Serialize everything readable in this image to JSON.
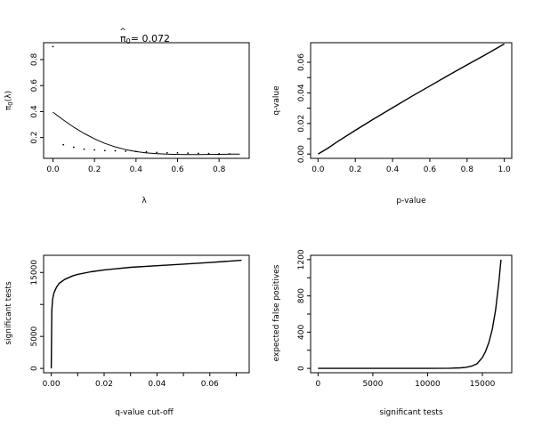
{
  "chart_data": [
    {
      "type": "scatter",
      "title": "π̂0= 0.072",
      "title_main": "π",
      "title_hat": "^",
      "title_sub": "0",
      "title_rest": "= 0.072",
      "xlabel": "λ",
      "ylabel": "π0(λ)",
      "ylabel_main": "π",
      "ylabel_sub": "0",
      "ylabel_rest": "(λ)",
      "xlim": [
        -0.045,
        0.945
      ],
      "ylim": [
        0.04,
        0.93
      ],
      "xticks": [
        0,
        0.2,
        0.4,
        0.6,
        0.8
      ],
      "xtick_labels": [
        "0.0",
        "0.2",
        "0.4",
        "0.6",
        "0.8"
      ],
      "yticks": [
        0.2,
        0.4,
        0.6,
        0.8
      ],
      "ytick_labels": [
        "0.2",
        "0.4",
        "0.6",
        "0.8"
      ],
      "points": {
        "x": [
          0,
          0.05,
          0.1,
          0.15,
          0.2,
          0.25,
          0.3,
          0.35,
          0.4,
          0.45,
          0.5,
          0.55,
          0.6,
          0.65,
          0.7,
          0.75,
          0.8,
          0.85
        ],
        "y": [
          0.9,
          0.145,
          0.125,
          0.11,
          0.105,
          0.1,
          0.098,
          0.095,
          0.093,
          0.09,
          0.085,
          0.083,
          0.082,
          0.08,
          0.078,
          0.077,
          0.075,
          0.074
        ]
      },
      "curve": {
        "x": [
          0,
          0.05,
          0.1,
          0.15,
          0.2,
          0.25,
          0.3,
          0.35,
          0.4,
          0.45,
          0.5,
          0.55,
          0.6,
          0.65,
          0.7,
          0.75,
          0.8,
          0.85,
          0.9
        ],
        "y": [
          0.395,
          0.335,
          0.28,
          0.232,
          0.19,
          0.155,
          0.128,
          0.107,
          0.092,
          0.082,
          0.076,
          0.072,
          0.07,
          0.069,
          0.069,
          0.07,
          0.071,
          0.072,
          0.073
        ]
      }
    },
    {
      "type": "line",
      "xlabel": "p-value",
      "ylabel": "q-value",
      "xlim": [
        -0.04,
        1.04
      ],
      "ylim": [
        -0.0028,
        0.0728
      ],
      "xticks": [
        0,
        0.2,
        0.4,
        0.6,
        0.8,
        1.0
      ],
      "xtick_labels": [
        "0.0",
        "0.2",
        "0.4",
        "0.6",
        "0.8",
        "1.0"
      ],
      "yticks": [
        0,
        0.02,
        0.04,
        0.06
      ],
      "ytick_labels": [
        "0.00",
        "0.02",
        "0.04",
        "0.06"
      ],
      "yticks_minor": [
        0.01,
        0.03,
        0.05
      ],
      "x": [
        0,
        0.02,
        0.05,
        0.1,
        0.2,
        0.3,
        0.4,
        0.5,
        0.6,
        0.7,
        0.8,
        0.9,
        1.0
      ],
      "y": [
        0,
        0.0015,
        0.0036,
        0.0078,
        0.0155,
        0.023,
        0.0303,
        0.0375,
        0.0445,
        0.0515,
        0.0583,
        0.065,
        0.072
      ]
    },
    {
      "type": "line",
      "xlabel": "q-value cut-off",
      "ylabel": "significant tests",
      "xlim": [
        -0.0029,
        0.0749
      ],
      "ylim": [
        -680,
        17680
      ],
      "xticks": [
        0,
        0.02,
        0.04,
        0.06
      ],
      "xtick_labels": [
        "0.00",
        "0.02",
        "0.04",
        "0.06"
      ],
      "xticks_minor": [
        0.01,
        0.03,
        0.05,
        0.07
      ],
      "yticks": [
        0,
        5000,
        15000
      ],
      "ytick_labels": [
        "0",
        "5000",
        "15000"
      ],
      "yticks_minor": [
        10000
      ],
      "x": [
        0,
        0.0002,
        0.0005,
        0.001,
        0.002,
        0.003,
        0.005,
        0.008,
        0.01,
        0.015,
        0.02,
        0.03,
        0.04,
        0.05,
        0.06,
        0.072
      ],
      "y": [
        0,
        9000,
        10800,
        11800,
        12700,
        13300,
        13900,
        14450,
        14700,
        15100,
        15400,
        15800,
        16050,
        16300,
        16550,
        16900
      ]
    },
    {
      "type": "line",
      "xlabel": "significant tests",
      "ylabel": "expected false positives",
      "xlim": [
        -680,
        17680
      ],
      "ylim": [
        -48,
        1248
      ],
      "xticks": [
        0,
        5000,
        10000,
        15000
      ],
      "xtick_labels": [
        "0",
        "5000",
        "10000",
        "15000"
      ],
      "yticks": [
        0,
        400,
        800,
        1200
      ],
      "ytick_labels": [
        "0",
        "400",
        "800",
        "1200"
      ],
      "yticks_minor": [
        200,
        600,
        1000
      ],
      "x": [
        0,
        10000,
        12000,
        13000,
        13500,
        14000,
        14500,
        15000,
        15300,
        15600,
        15900,
        16200,
        16500,
        16700
      ],
      "y": [
        0,
        0,
        2,
        6,
        12,
        25,
        50,
        120,
        190,
        290,
        430,
        640,
        950,
        1200
      ]
    }
  ]
}
